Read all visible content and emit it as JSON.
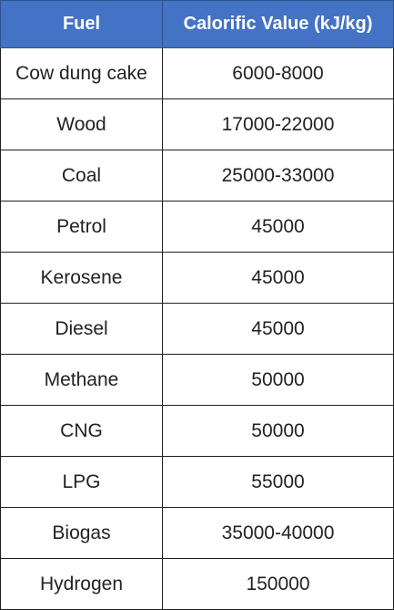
{
  "table": {
    "headers": [
      "Fuel",
      "Calorific Value (kJ/kg)"
    ],
    "rows": [
      [
        "Cow dung cake",
        "6000-8000"
      ],
      [
        "Wood",
        "17000-22000"
      ],
      [
        "Coal",
        "25000-33000"
      ],
      [
        "Petrol",
        "45000"
      ],
      [
        "Kerosene",
        "45000"
      ],
      [
        "Diesel",
        "45000"
      ],
      [
        "Methane",
        "50000"
      ],
      [
        "CNG",
        "50000"
      ],
      [
        "LPG",
        "55000"
      ],
      [
        "Biogas",
        "35000-40000"
      ],
      [
        "Hydrogen",
        "150000"
      ]
    ]
  },
  "colors": {
    "header_background": "#4472c4",
    "header_text": "#ffffff",
    "cell_text": "#222222",
    "border": "#1f1f1f"
  }
}
